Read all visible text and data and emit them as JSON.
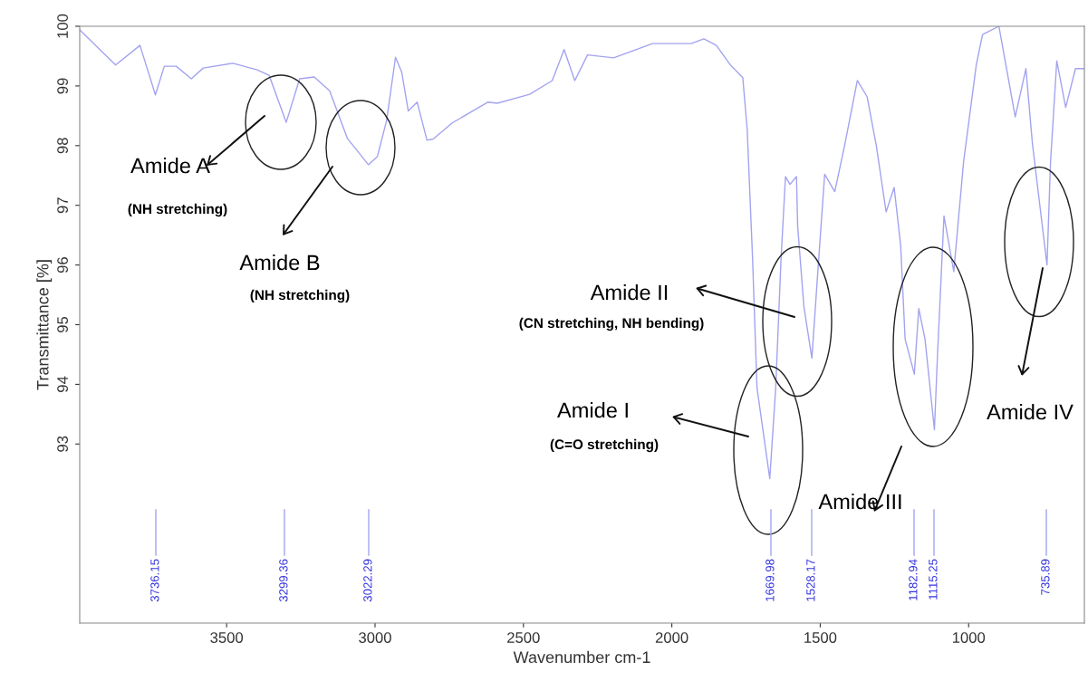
{
  "chart_data": {
    "type": "line",
    "xlabel": "Wavenumber cm-1",
    "ylabel": "Transmittance [%]",
    "xlim": [
      3995,
      610
    ],
    "ylim": [
      90,
      100
    ],
    "xticks": [
      3500,
      3000,
      2500,
      2000,
      1500,
      1000
    ],
    "yticks": [
      93,
      94,
      95,
      96,
      97,
      98,
      99,
      100
    ],
    "grid": false,
    "marker": "none",
    "line_style": "solid",
    "series": [
      {
        "color": "#a3a3f0",
        "x": [
          3995,
          3874,
          3792,
          3740,
          3710,
          3670,
          3619,
          3579,
          3479,
          3397,
          3357,
          3299.36,
          3254,
          3205,
          3153,
          3093,
          3022.29,
          2992,
          2961,
          2931,
          2910,
          2888,
          2858,
          2825,
          2804,
          2740,
          2619,
          2588,
          2479,
          2403,
          2363,
          2327,
          2284,
          2196,
          2065,
          1935,
          1892,
          1850,
          1804,
          1761,
          1746,
          1728,
          1713,
          1669.98,
          1650,
          1632,
          1617,
          1602,
          1580,
          1576,
          1555,
          1528.17,
          1505,
          1485,
          1451,
          1418,
          1375,
          1342,
          1311,
          1278,
          1251,
          1229,
          1214,
          1182.94,
          1168,
          1147,
          1115.25,
          1105,
          1083,
          1050,
          1017,
          974,
          953,
          898,
          865,
          843,
          807,
          785,
          735.89,
          724,
          703,
          673,
          640,
          610
        ],
        "values": [
          99.94,
          99.35,
          99.68,
          98.85,
          99.33,
          99.33,
          99.12,
          99.3,
          99.38,
          99.27,
          99.18,
          98.39,
          99.12,
          99.15,
          98.92,
          98.12,
          97.68,
          97.82,
          98.42,
          99.48,
          99.23,
          98.58,
          98.73,
          98.09,
          98.11,
          98.38,
          98.73,
          98.71,
          98.86,
          99.09,
          99.61,
          99.09,
          99.52,
          99.47,
          99.71,
          99.71,
          99.79,
          99.68,
          99.36,
          99.14,
          98.27,
          96.11,
          93.94,
          92.42,
          93.94,
          96.11,
          97.48,
          97.35,
          97.48,
          96.65,
          95.3,
          94.44,
          96.11,
          97.52,
          97.23,
          98.0,
          99.09,
          98.82,
          98.0,
          96.89,
          97.3,
          96.33,
          94.76,
          94.17,
          95.27,
          94.76,
          93.24,
          94.48,
          96.82,
          95.89,
          97.73,
          99.36,
          99.86,
          100.0,
          99.09,
          98.48,
          99.29,
          98.03,
          96.0,
          97.73,
          99.42,
          98.64,
          99.29,
          99.29
        ]
      }
    ],
    "annotations": [
      "Amide A\n(NH stretching)",
      "Amide B\n(NH stretching)",
      "Amide I\n(C=O stretching)",
      "Amide II\n(CN stretching, NH bending)",
      "Amide III",
      "Amide IV",
      "3736.15",
      "3299.36",
      "3022.29",
      "1669.98",
      "1528.17",
      "1182.94",
      "1115.25",
      "735.89"
    ]
  }
}
